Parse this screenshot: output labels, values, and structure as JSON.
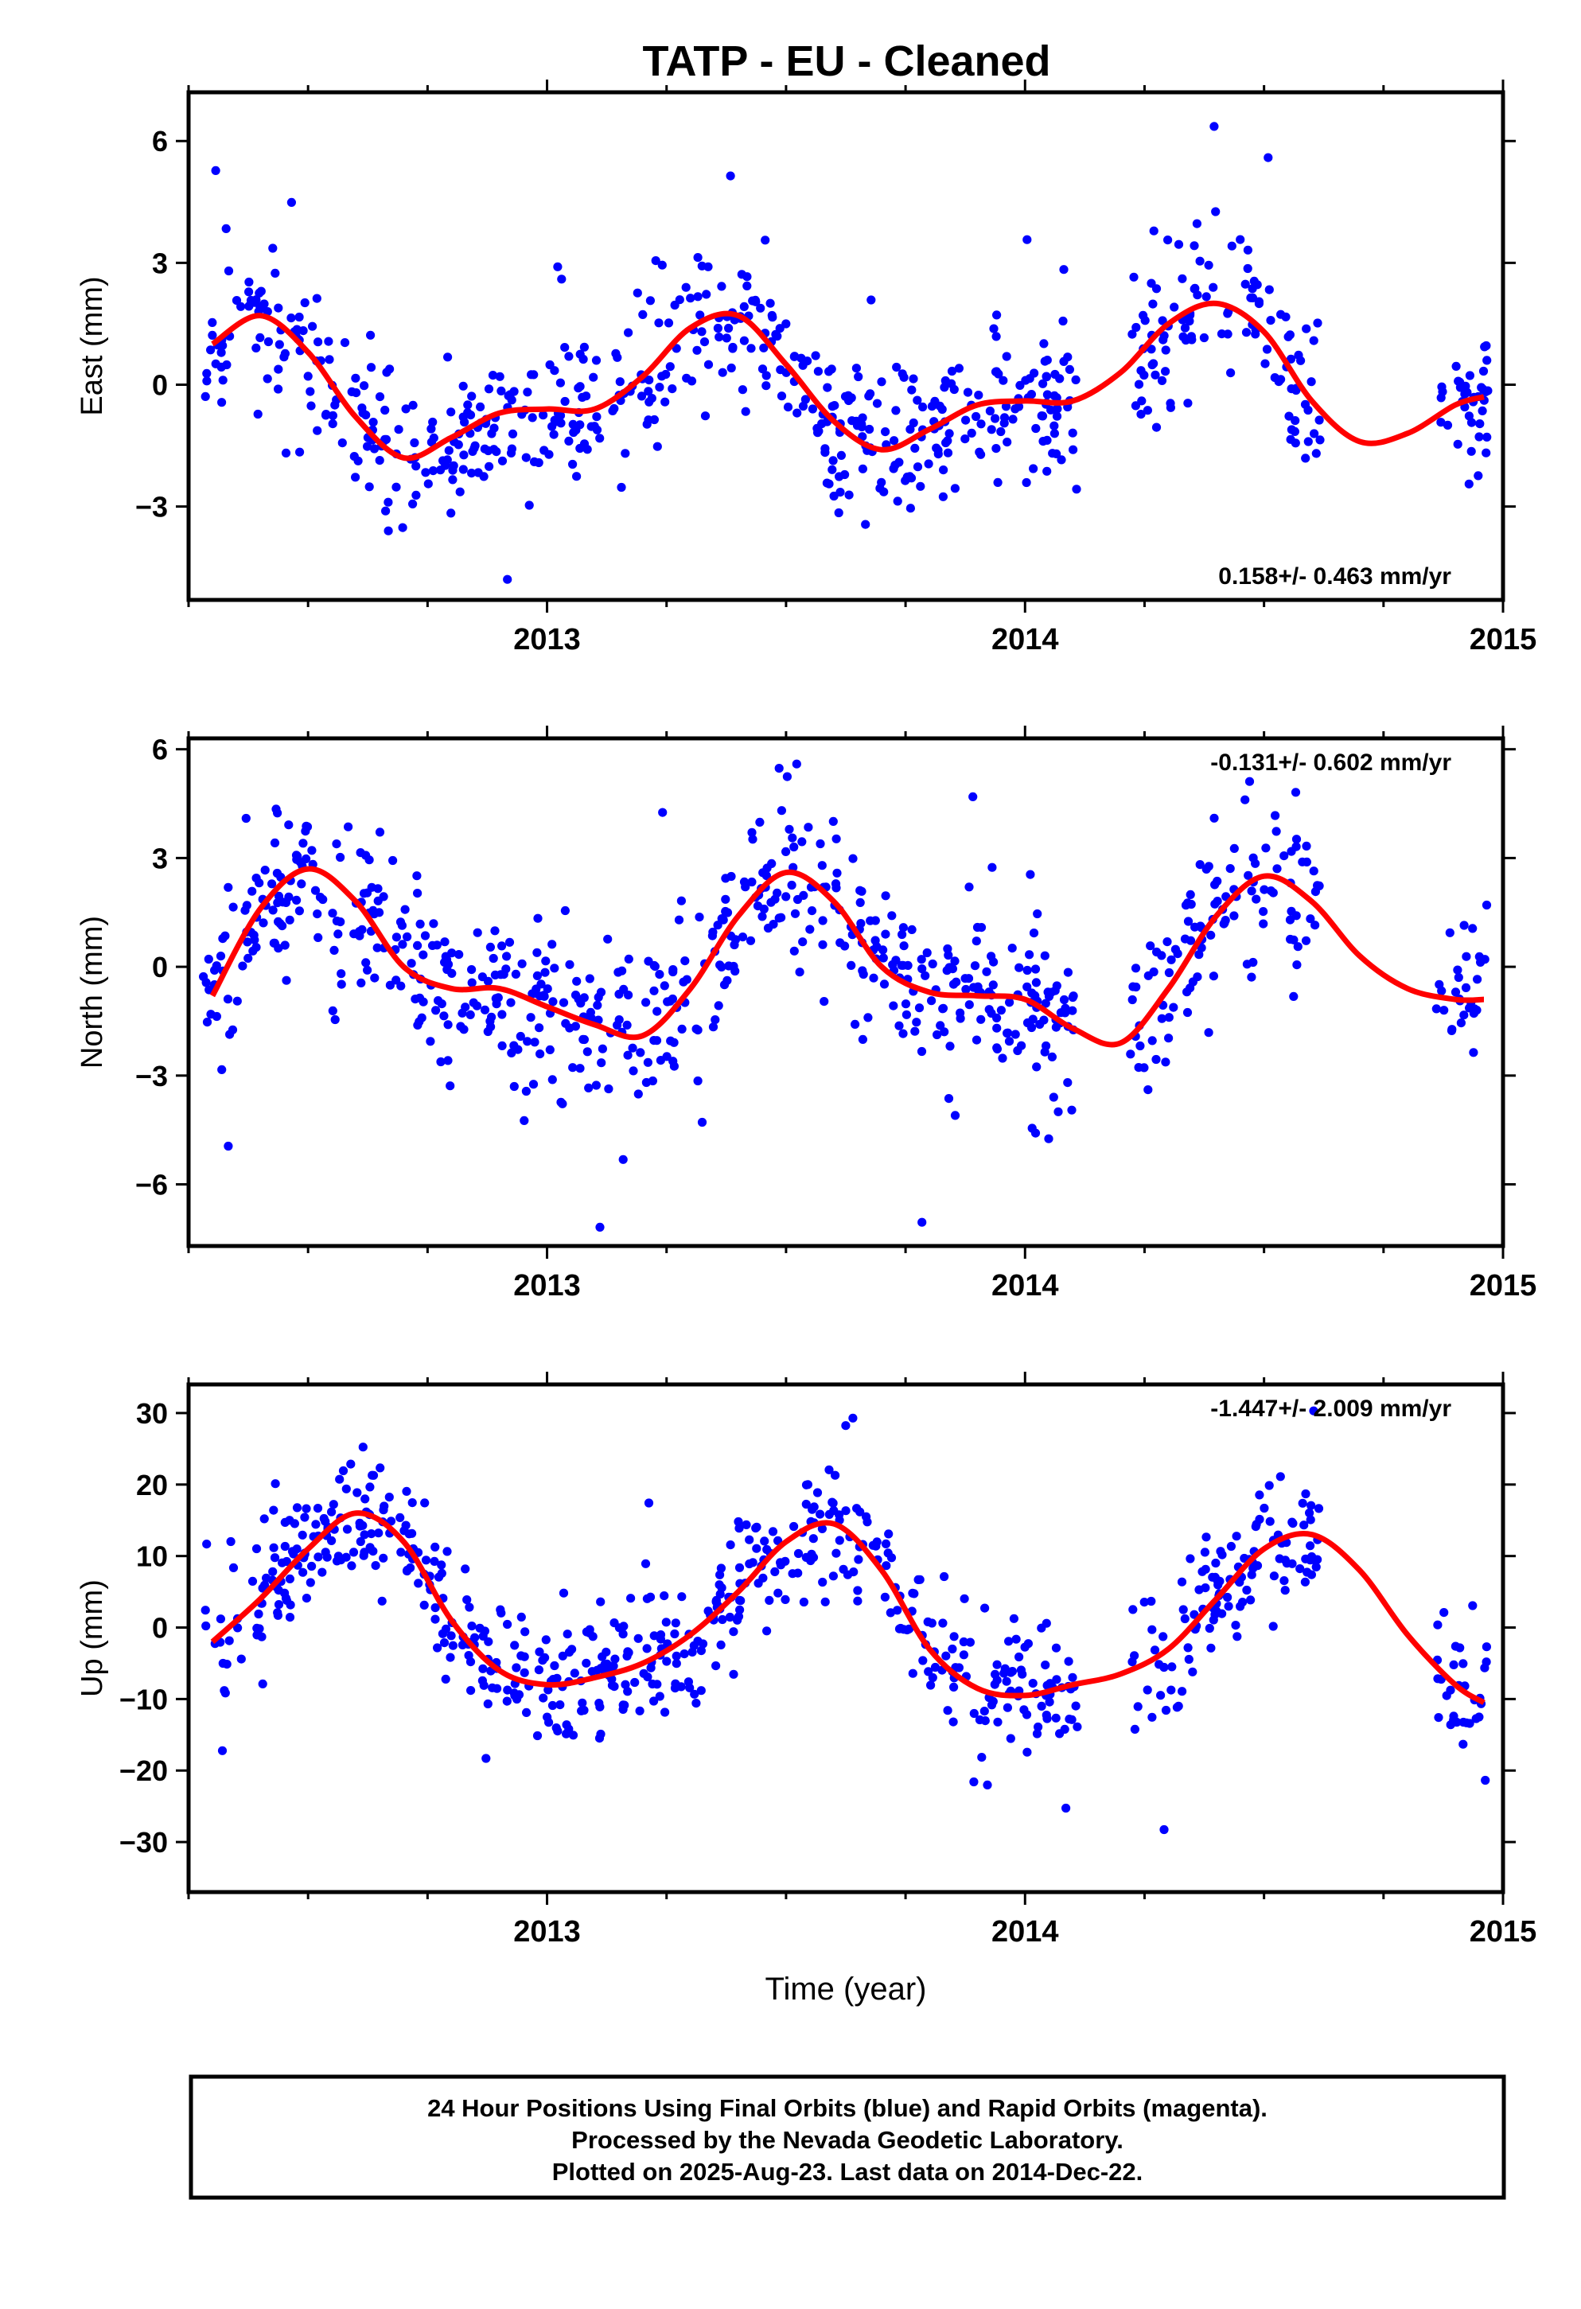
{
  "title": "TATP  - EU - Cleaned",
  "footer": {
    "lines": [
      "24 Hour Positions Using Final Orbits (blue) and Rapid Orbits (magenta).",
      "Processed by the Nevada Geodetic Laboratory.",
      "Plotted on 2025-Aug-23. Last data on 2014-Dec-22."
    ]
  },
  "colors": {
    "points": "#0000ff",
    "model": "#ff0000",
    "frame": "#000000"
  },
  "chart_data": [
    {
      "type": "scatter",
      "ylabel": "East (mm)",
      "xlabel": "",
      "xlim": [
        2012.25,
        2015.0
      ],
      "ylim": [
        -5.3,
        7.2
      ],
      "xticks": [
        2013,
        2014,
        2015
      ],
      "xtick_labels": [
        "2013",
        "2014",
        "2015"
      ],
      "yticks": [
        -3,
        0,
        3,
        6
      ],
      "ytick_labels": [
        "−3",
        "0",
        "3",
        "6"
      ],
      "rate_label": "0.158+/- 0.463 mm/yr",
      "rate_position": "bottom-right",
      "model": {
        "x": [
          2012.3,
          2012.4,
          2012.5,
          2012.6,
          2012.7,
          2012.8,
          2012.9,
          2013.0,
          2013.1,
          2013.2,
          2013.3,
          2013.4,
          2013.5,
          2013.6,
          2013.7,
          2013.8,
          2013.9,
          2014.0,
          2014.1,
          2014.2,
          2014.3,
          2014.4,
          2014.5,
          2014.6,
          2014.7,
          2014.8,
          2014.9,
          2014.96
        ],
        "y": [
          1.0,
          1.7,
          0.8,
          -0.8,
          -1.8,
          -1.3,
          -0.7,
          -0.6,
          -0.6,
          0.2,
          1.4,
          1.7,
          0.5,
          -0.9,
          -1.6,
          -1.1,
          -0.5,
          -0.4,
          -0.4,
          0.3,
          1.5,
          2.0,
          1.3,
          -0.4,
          -1.4,
          -1.2,
          -0.5,
          -0.3
        ]
      },
      "points": {
        "x_start": 2012.28,
        "x_end": 2014.97,
        "gaps": [
          [
            2014.11,
            2014.22
          ],
          [
            2014.62,
            2014.86
          ]
        ],
        "n": 820,
        "scatter": 0.95,
        "outlier_fraction": 0.05,
        "outlier_scale": 2.6,
        "seed": 11
      }
    },
    {
      "type": "scatter",
      "ylabel": "North (mm)",
      "xlabel": "",
      "xlim": [
        2012.25,
        2015.0
      ],
      "ylim": [
        -7.7,
        6.3
      ],
      "xticks": [
        2013,
        2014,
        2015
      ],
      "xtick_labels": [
        "2013",
        "2014",
        "2015"
      ],
      "yticks": [
        -6,
        -3,
        0,
        3,
        6
      ],
      "ytick_labels": [
        "−6",
        "−3",
        "0",
        "3",
        "6"
      ],
      "rate_label": "-0.131+/- 0.602 mm/yr",
      "rate_position": "top-right",
      "model": {
        "x": [
          2012.3,
          2012.4,
          2012.5,
          2012.6,
          2012.7,
          2012.8,
          2012.9,
          2013.0,
          2013.1,
          2013.2,
          2013.3,
          2013.4,
          2013.5,
          2013.6,
          2013.7,
          2013.8,
          2013.9,
          2014.0,
          2014.1,
          2014.2,
          2014.3,
          2014.4,
          2014.5,
          2014.6,
          2014.7,
          2014.8,
          2014.9,
          2014.96
        ],
        "y": [
          -0.8,
          1.6,
          2.7,
          1.8,
          0.0,
          -0.6,
          -0.6,
          -1.1,
          -1.6,
          -1.9,
          -0.6,
          1.4,
          2.6,
          1.8,
          0.0,
          -0.7,
          -0.8,
          -0.9,
          -1.7,
          -2.1,
          -0.6,
          1.4,
          2.5,
          1.8,
          0.3,
          -0.6,
          -0.9,
          -0.9
        ]
      },
      "points": {
        "x_start": 2012.28,
        "x_end": 2014.97,
        "gaps": [
          [
            2014.11,
            2014.22
          ],
          [
            2014.62,
            2014.86
          ]
        ],
        "n": 820,
        "scatter": 1.15,
        "outlier_fraction": 0.05,
        "outlier_scale": 2.6,
        "seed": 23
      }
    },
    {
      "type": "scatter",
      "ylabel": "Up (mm)",
      "xlabel": "Time (year)",
      "xlim": [
        2012.25,
        2015.0
      ],
      "ylim": [
        -37,
        34
      ],
      "xticks": [
        2013,
        2014,
        2015
      ],
      "xtick_labels": [
        "2013",
        "2014",
        "2015"
      ],
      "yticks": [
        -30,
        -20,
        -10,
        0,
        10,
        20,
        30
      ],
      "ytick_labels": [
        "−30",
        "−20",
        "−10",
        "0",
        "10",
        "20",
        "30"
      ],
      "rate_label": "-1.447+/- 2.009 mm/yr",
      "rate_position": "top-right",
      "model": {
        "x": [
          2012.3,
          2012.4,
          2012.5,
          2012.6,
          2012.7,
          2012.8,
          2012.9,
          2013.0,
          2013.1,
          2013.2,
          2013.3,
          2013.4,
          2013.5,
          2013.6,
          2013.7,
          2013.8,
          2013.9,
          2014.0,
          2014.1,
          2014.2,
          2014.3,
          2014.4,
          2014.5,
          2014.6,
          2014.7,
          2014.8,
          2014.9,
          2014.96
        ],
        "y": [
          -2.0,
          4.0,
          11.0,
          16.0,
          12.0,
          1.0,
          -6.0,
          -8.0,
          -7.0,
          -5.0,
          -1.0,
          5.0,
          12.0,
          14.5,
          8.0,
          -3.0,
          -8.5,
          -9.5,
          -8.0,
          -6.5,
          -3.0,
          4.0,
          11.0,
          13.0,
          8.0,
          -1.0,
          -8.0,
          -10.5
        ]
      },
      "points": {
        "x_start": 2012.28,
        "x_end": 2014.97,
        "gaps": [
          [
            2014.11,
            2014.22
          ],
          [
            2014.62,
            2014.86
          ]
        ],
        "n": 820,
        "scatter": 4.6,
        "outlier_fraction": 0.05,
        "outlier_scale": 2.6,
        "seed": 37
      }
    }
  ]
}
